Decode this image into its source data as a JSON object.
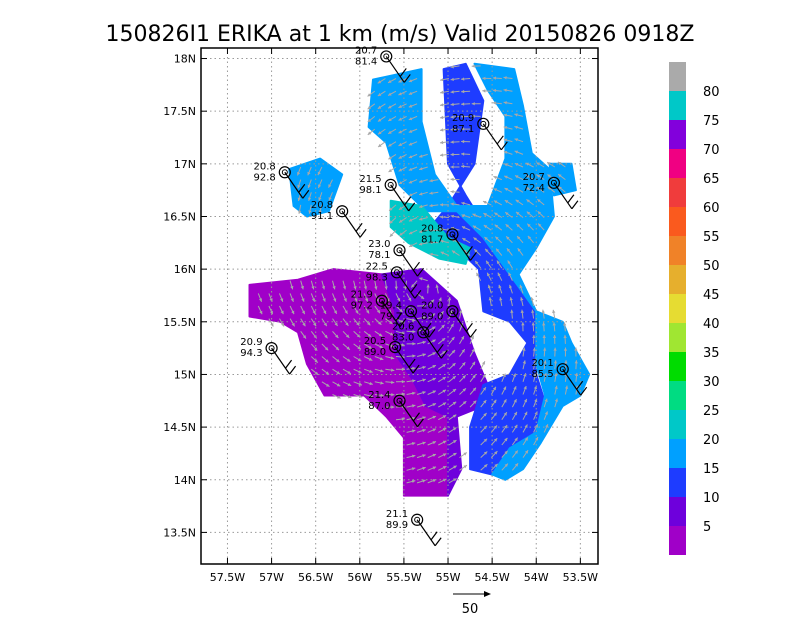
{
  "chart_data": {
    "type": "heatmap",
    "title": "150826I1 ERIKA at 1 km (m/s) Valid 20150826 0918Z",
    "xlim": [
      -57.8,
      -53.3
    ],
    "ylim": [
      13.2,
      18.1
    ],
    "x_ticks": [
      {
        "value": -57.5,
        "label": "57.5W"
      },
      {
        "value": -57.0,
        "label": "57W"
      },
      {
        "value": -56.5,
        "label": "56.5W"
      },
      {
        "value": -56.0,
        "label": "56W"
      },
      {
        "value": -55.5,
        "label": "55.5W"
      },
      {
        "value": -55.0,
        "label": "55W"
      },
      {
        "value": -54.5,
        "label": "54.5W"
      },
      {
        "value": -54.0,
        "label": "54W"
      },
      {
        "value": -53.5,
        "label": "53.5W"
      }
    ],
    "y_ticks": [
      {
        "value": 13.5,
        "label": "13.5N"
      },
      {
        "value": 14.0,
        "label": "14N"
      },
      {
        "value": 14.5,
        "label": "14.5N"
      },
      {
        "value": 15.0,
        "label": "15N"
      },
      {
        "value": 15.5,
        "label": "15.5N"
      },
      {
        "value": 16.0,
        "label": "16N"
      },
      {
        "value": 16.5,
        "label": "16.5N"
      },
      {
        "value": 17.0,
        "label": "17N"
      },
      {
        "value": 17.5,
        "label": "17.5N"
      },
      {
        "value": 18.0,
        "label": "18N"
      }
    ],
    "grid": true,
    "colorbar": {
      "placement": "right",
      "range": [
        0,
        85
      ],
      "bins": [
        {
          "from": 0,
          "to": 5,
          "color": "#a000c8"
        },
        {
          "from": 5,
          "to": 10,
          "color": "#6e00dc"
        },
        {
          "from": 10,
          "to": 15,
          "color": "#1e3cff"
        },
        {
          "from": 15,
          "to": 20,
          "color": "#00a0ff"
        },
        {
          "from": 20,
          "to": 25,
          "color": "#00c8c8"
        },
        {
          "from": 25,
          "to": 30,
          "color": "#00dc82"
        },
        {
          "from": 30,
          "to": 35,
          "color": "#00dc00"
        },
        {
          "from": 35,
          "to": 40,
          "color": "#a0e632"
        },
        {
          "from": 40,
          "to": 45,
          "color": "#e6dc32"
        },
        {
          "from": 45,
          "to": 50,
          "color": "#e6af2d"
        },
        {
          "from": 50,
          "to": 55,
          "color": "#f08228"
        },
        {
          "from": 55,
          "to": 60,
          "color": "#fa5a1e"
        },
        {
          "from": 60,
          "to": 65,
          "color": "#f03c3c"
        },
        {
          "from": 65,
          "to": 70,
          "color": "#f00082"
        },
        {
          "from": 70,
          "to": 75,
          "color": "#8200dc"
        },
        {
          "from": 75,
          "to": 80,
          "color": "#00c8c8"
        },
        {
          "from": 80,
          "to": 85,
          "color": "#aaaaaa"
        }
      ],
      "labels": [
        {
          "value": 5,
          "label": "5"
        },
        {
          "value": 10,
          "label": "10"
        },
        {
          "value": 15,
          "label": "15"
        },
        {
          "value": 20,
          "label": "20"
        },
        {
          "value": 25,
          "label": "25"
        },
        {
          "value": 30,
          "label": "30"
        },
        {
          "value": 35,
          "label": "35"
        },
        {
          "value": 40,
          "label": "40"
        },
        {
          "value": 45,
          "label": "45"
        },
        {
          "value": 50,
          "label": "50"
        },
        {
          "value": 55,
          "label": "55"
        },
        {
          "value": 60,
          "label": "60"
        },
        {
          "value": 65,
          "label": "65"
        },
        {
          "value": 70,
          "label": "70"
        },
        {
          "value": 75,
          "label": "75"
        },
        {
          "value": 80,
          "label": "80"
        }
      ]
    },
    "reference_vector": {
      "label": "50",
      "value": 50
    },
    "wind_regions": [
      {
        "speed_ms": 3,
        "poly": [
          [
            -57.25,
            15.85
          ],
          [
            -56.7,
            15.9
          ],
          [
            -56.3,
            16.0
          ],
          [
            -55.75,
            15.95
          ],
          [
            -55.6,
            15.6
          ],
          [
            -55.6,
            15.2
          ],
          [
            -55.4,
            14.95
          ],
          [
            -55.25,
            14.7
          ],
          [
            -55.0,
            14.6
          ],
          [
            -55.0,
            13.85
          ],
          [
            -55.5,
            13.85
          ],
          [
            -55.5,
            14.4
          ],
          [
            -55.7,
            14.6
          ],
          [
            -55.95,
            14.8
          ],
          [
            -56.4,
            14.8
          ],
          [
            -56.6,
            15.1
          ],
          [
            -56.7,
            15.4
          ],
          [
            -56.9,
            15.5
          ],
          [
            -57.25,
            15.55
          ]
        ]
      },
      {
        "speed_ms": 7,
        "poly": [
          [
            -55.75,
            15.95
          ],
          [
            -55.3,
            16.0
          ],
          [
            -54.9,
            15.7
          ],
          [
            -54.7,
            15.2
          ],
          [
            -54.55,
            14.9
          ],
          [
            -54.6,
            14.7
          ],
          [
            -54.9,
            14.6
          ],
          [
            -54.85,
            14.1
          ],
          [
            -55.0,
            13.85
          ],
          [
            -55.0,
            14.6
          ],
          [
            -55.25,
            14.7
          ],
          [
            -55.4,
            14.95
          ],
          [
            -55.6,
            15.2
          ],
          [
            -55.6,
            15.6
          ]
        ]
      },
      {
        "speed_ms": 12,
        "poly": [
          [
            -55.2,
            16.4
          ],
          [
            -54.9,
            16.2
          ],
          [
            -54.65,
            16.0
          ],
          [
            -54.6,
            15.6
          ],
          [
            -54.3,
            15.5
          ],
          [
            -54.1,
            15.3
          ],
          [
            -54.3,
            15.0
          ],
          [
            -54.6,
            14.9
          ],
          [
            -54.75,
            14.5
          ],
          [
            -54.75,
            14.1
          ],
          [
            -54.5,
            14.05
          ],
          [
            -54.3,
            14.3
          ],
          [
            -54.0,
            14.4
          ],
          [
            -53.85,
            14.6
          ],
          [
            -54.0,
            15.0
          ],
          [
            -54.0,
            15.6
          ],
          [
            -54.2,
            15.9
          ],
          [
            -54.5,
            16.3
          ],
          [
            -54.8,
            16.7
          ],
          [
            -55.0,
            17.0
          ],
          [
            -55.05,
            17.9
          ],
          [
            -54.8,
            17.95
          ],
          [
            -54.6,
            17.6
          ],
          [
            -54.7,
            17.0
          ],
          [
            -55.0,
            16.6
          ]
        ]
      },
      {
        "speed_ms": 17,
        "poly": [
          [
            -55.85,
            17.8
          ],
          [
            -55.3,
            17.9
          ],
          [
            -55.3,
            17.4
          ],
          [
            -55.15,
            16.9
          ],
          [
            -54.9,
            16.6
          ],
          [
            -54.55,
            16.6
          ],
          [
            -54.35,
            17.05
          ],
          [
            -54.35,
            17.45
          ],
          [
            -54.55,
            17.7
          ],
          [
            -54.7,
            17.95
          ],
          [
            -54.25,
            17.9
          ],
          [
            -54.15,
            17.55
          ],
          [
            -54.05,
            17.1
          ],
          [
            -53.85,
            16.95
          ],
          [
            -53.8,
            16.5
          ],
          [
            -54.0,
            16.2
          ],
          [
            -54.2,
            15.95
          ],
          [
            -54.0,
            15.6
          ],
          [
            -53.7,
            15.5
          ],
          [
            -53.6,
            15.3
          ],
          [
            -53.4,
            15.0
          ],
          [
            -53.5,
            14.8
          ],
          [
            -53.7,
            14.7
          ],
          [
            -53.95,
            14.35
          ],
          [
            -54.15,
            14.1
          ],
          [
            -54.35,
            14.0
          ],
          [
            -54.5,
            14.05
          ],
          [
            -54.3,
            14.3
          ],
          [
            -54.0,
            14.45
          ],
          [
            -53.9,
            14.8
          ],
          [
            -54.0,
            15.1
          ],
          [
            -54.0,
            15.6
          ],
          [
            -54.3,
            15.95
          ],
          [
            -54.6,
            16.3
          ],
          [
            -54.9,
            16.55
          ],
          [
            -55.25,
            16.55
          ],
          [
            -55.55,
            16.8
          ],
          [
            -55.7,
            17.2
          ],
          [
            -55.9,
            17.35
          ]
        ]
      },
      {
        "speed_ms": 17,
        "poly": [
          [
            -56.8,
            16.95
          ],
          [
            -56.45,
            17.05
          ],
          [
            -56.2,
            16.9
          ],
          [
            -56.35,
            16.55
          ],
          [
            -56.6,
            16.5
          ],
          [
            -56.75,
            16.6
          ]
        ]
      },
      {
        "speed_ms": 17,
        "poly": [
          [
            -53.85,
            17.0
          ],
          [
            -53.6,
            17.0
          ],
          [
            -53.55,
            16.75
          ],
          [
            -53.8,
            16.7
          ]
        ]
      },
      {
        "speed_ms": 22,
        "poly": [
          [
            -55.65,
            16.65
          ],
          [
            -55.3,
            16.6
          ],
          [
            -55.0,
            16.3
          ],
          [
            -54.75,
            16.2
          ],
          [
            -54.8,
            16.05
          ],
          [
            -55.1,
            16.1
          ],
          [
            -55.45,
            16.25
          ],
          [
            -55.65,
            16.4
          ]
        ]
      }
    ],
    "wind_vectors_sampled": true,
    "stations": [
      {
        "lon": -55.7,
        "lat": 18.02,
        "speed": "20.7",
        "pressure": "81.4"
      },
      {
        "lon": -54.6,
        "lat": 17.38,
        "speed": "20.9",
        "pressure": "87.1"
      },
      {
        "lon": -56.85,
        "lat": 16.92,
        "speed": "20.8",
        "pressure": "92.8"
      },
      {
        "lon": -53.8,
        "lat": 16.82,
        "speed": "20.7",
        "pressure": "72.4"
      },
      {
        "lon": -55.65,
        "lat": 16.8,
        "speed": "21.5",
        "pressure": "98.1"
      },
      {
        "lon": -56.2,
        "lat": 16.55,
        "speed": "20.8",
        "pressure": "91.1"
      },
      {
        "lon": -54.95,
        "lat": 16.33,
        "speed": "20.8",
        "pressure": "81.7"
      },
      {
        "lon": -55.55,
        "lat": 16.18,
        "speed": "23.0",
        "pressure": "78.1"
      },
      {
        "lon": -55.58,
        "lat": 15.97,
        "speed": "22.5",
        "pressure": "98.3"
      },
      {
        "lon": -55.75,
        "lat": 15.7,
        "speed": "21.9",
        "pressure": "97.2"
      },
      {
        "lon": -55.42,
        "lat": 15.6,
        "speed": "19.4",
        "pressure": "79.7"
      },
      {
        "lon": -54.95,
        "lat": 15.6,
        "speed": "20.0",
        "pressure": "89.0"
      },
      {
        "lon": -55.28,
        "lat": 15.4,
        "speed": "20.6",
        "pressure": "83.0"
      },
      {
        "lon": -55.6,
        "lat": 15.26,
        "speed": "20.5",
        "pressure": "89.0"
      },
      {
        "lon": -57.0,
        "lat": 15.25,
        "speed": "20.9",
        "pressure": "94.3"
      },
      {
        "lon": -53.7,
        "lat": 15.05,
        "speed": "20.1",
        "pressure": "85.5"
      },
      {
        "lon": -55.55,
        "lat": 14.75,
        "speed": "21.4",
        "pressure": "87.0"
      },
      {
        "lon": -55.35,
        "lat": 13.62,
        "speed": "21.1",
        "pressure": "89.9"
      }
    ]
  }
}
